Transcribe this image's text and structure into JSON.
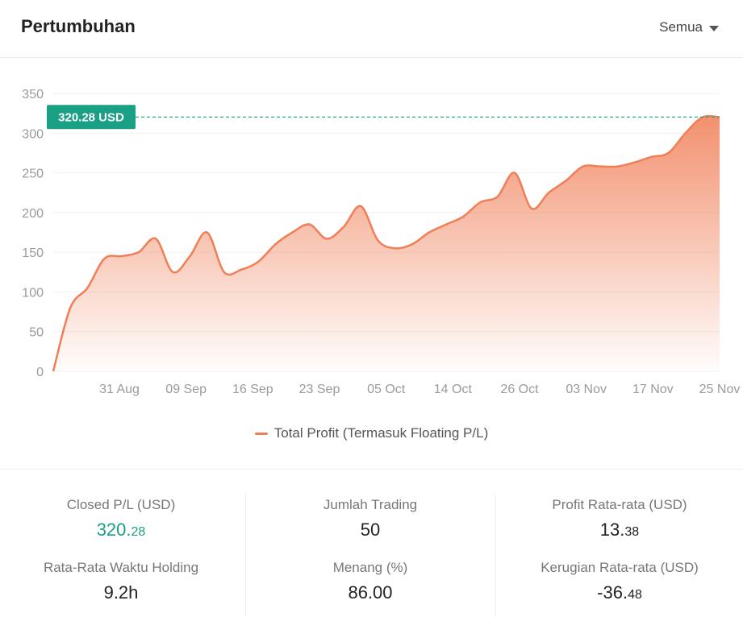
{
  "header": {
    "title": "Pertumbuhan",
    "filter_label": "Semua"
  },
  "chart_data": {
    "type": "area",
    "xlabel": "",
    "ylabel": "",
    "ylim": [
      0,
      350
    ],
    "yticks": [
      "0",
      "50",
      "100",
      "150",
      "200",
      "250",
      "300",
      "350"
    ],
    "x_tick_labels": [
      "31 Aug",
      "09 Sep",
      "16 Sep",
      "23 Sep",
      "05 Oct",
      "14 Oct",
      "26 Oct",
      "03 Nov",
      "17 Nov",
      "25 Nov"
    ],
    "grid": true,
    "legend_position": "bottom",
    "color": "#f07e56",
    "series": [
      {
        "name": "Total Profit (Termasuk Floating P/L)",
        "values": [
          0,
          80,
          105,
          142,
          145,
          150,
          167,
          125,
          145,
          175,
          125,
          128,
          138,
          160,
          175,
          185,
          167,
          182,
          208,
          165,
          155,
          160,
          175,
          185,
          195,
          213,
          220,
          250,
          205,
          225,
          240,
          258,
          258,
          258,
          263,
          270,
          275,
          300,
          320,
          320
        ]
      }
    ],
    "last_value_badge": "320.28 USD",
    "last_value": 320.28
  },
  "stats": {
    "closed_pl": {
      "label": "Closed P/L (USD)",
      "int": "320.",
      "dec": "28"
    },
    "jumlah_trading": {
      "label": "Jumlah Trading",
      "value": "50"
    },
    "profit_rata": {
      "label": "Profit Rata-rata (USD)",
      "int": "13.",
      "dec": "38"
    },
    "waktu_holding": {
      "label": "Rata-Rata Waktu Holding",
      "value": "9.2h"
    },
    "menang": {
      "label": "Menang (%)",
      "value": "86.00"
    },
    "kerugian_rata": {
      "label": "Kerugian Rata-rata (USD)",
      "int": "-36.",
      "dec": "48"
    }
  }
}
